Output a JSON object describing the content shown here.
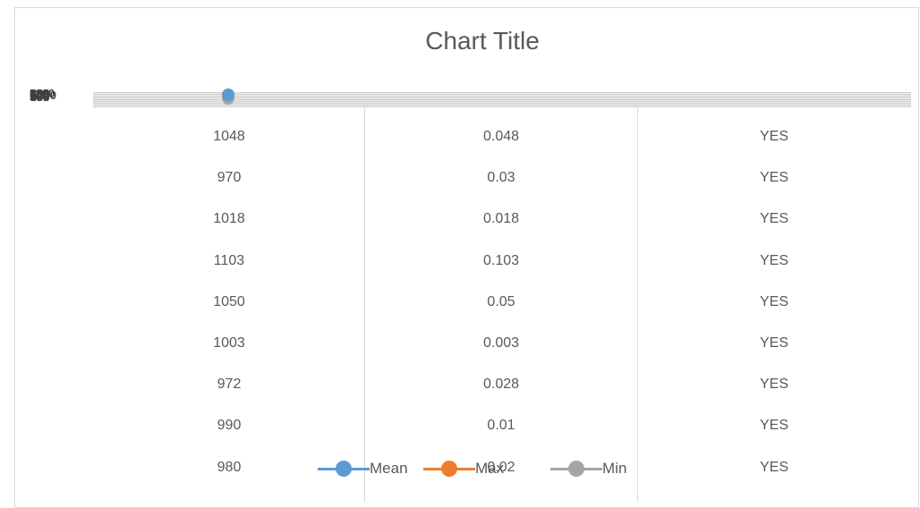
{
  "chart_data": {
    "type": "line",
    "title": "Chart Title",
    "yticks": [
      "1100",
      "1000",
      "900",
      "800",
      "700",
      "600",
      "500",
      "400",
      "300",
      "200",
      "100",
      "0"
    ],
    "series": [
      {
        "name": "Mean",
        "color": "#5B9BD5"
      },
      {
        "name": "Max",
        "color": "#ED7D31"
      },
      {
        "name": "Min",
        "color": "#A5A5A5"
      }
    ],
    "legend_position": "bottom",
    "table": {
      "rows": [
        [
          "1048",
          "0.048",
          "YES"
        ],
        [
          "970",
          "0.03",
          "YES"
        ],
        [
          "1018",
          "0.018",
          "YES"
        ],
        [
          "1103",
          "0.103",
          "YES"
        ],
        [
          "1050",
          "0.05",
          "YES"
        ],
        [
          "1003",
          "0.003",
          "YES"
        ],
        [
          "972",
          "0.028",
          "YES"
        ],
        [
          "990",
          "0.01",
          "YES"
        ],
        [
          "980",
          "0.02",
          "YES"
        ]
      ]
    }
  }
}
